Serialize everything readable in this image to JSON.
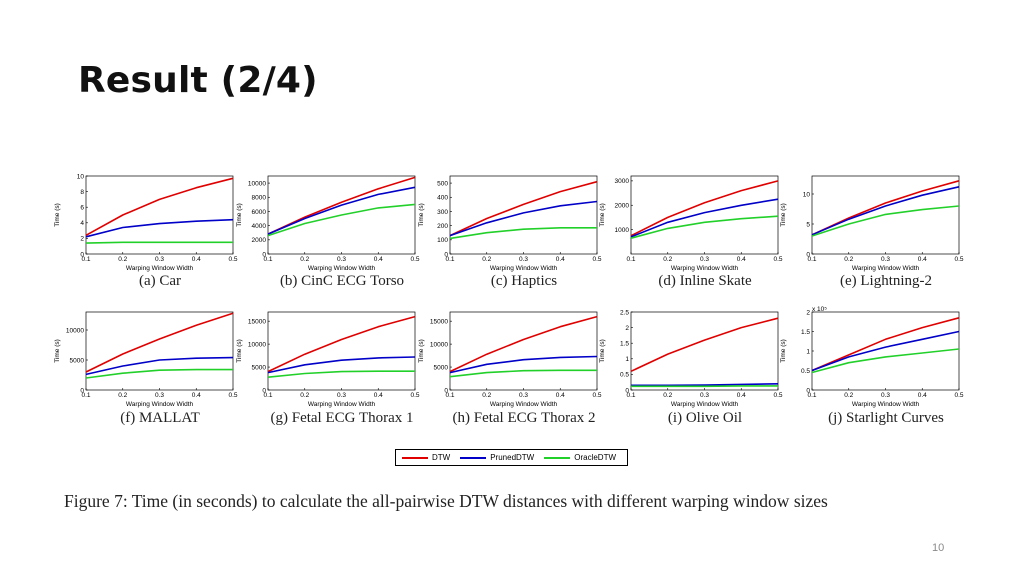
{
  "slide": {
    "title": "Result (2/4)",
    "page_number": "10"
  },
  "figure_caption": "Figure 7: Time (in seconds) to calculate the all-pairwise DTW distances with different warping window sizes",
  "legend": [
    {
      "label": "DTW",
      "color": "#e00000"
    },
    {
      "label": "PrunedDTW",
      "color": "#0000c8"
    },
    {
      "label": "OracleDTW",
      "color": "#22d02a"
    }
  ],
  "chart_data": [
    {
      "type": "line",
      "caption": "(a) Car",
      "x": [
        0.1,
        0.2,
        0.3,
        0.4,
        0.5
      ],
      "xlabel": "Warping Window Width",
      "ylabel": "Time (s)",
      "xlim": [
        0.1,
        0.5
      ],
      "ylim": [
        0,
        10
      ],
      "yticks": [
        "0",
        "2",
        "4",
        "6",
        "8",
        "10"
      ],
      "xticks": [
        "0.1",
        "0.2",
        "0.3",
        "0.4",
        "0.5"
      ],
      "series": [
        {
          "name": "DTW",
          "values": [
            2.4,
            5.0,
            7.0,
            8.5,
            9.7
          ]
        },
        {
          "name": "PrunedDTW",
          "values": [
            2.2,
            3.4,
            3.9,
            4.2,
            4.4
          ]
        },
        {
          "name": "OracleDTW",
          "values": [
            1.4,
            1.5,
            1.5,
            1.5,
            1.5
          ]
        }
      ]
    },
    {
      "type": "line",
      "caption": "(b) CinC ECG Torso",
      "x": [
        0.1,
        0.2,
        0.3,
        0.4,
        0.5
      ],
      "xlabel": "Warping Window Width",
      "ylabel": "Time (s)",
      "xlim": [
        0.1,
        0.5
      ],
      "ylim": [
        0,
        11000
      ],
      "yticks": [
        "0",
        "2000",
        "4000",
        "6000",
        "8000",
        "10000"
      ],
      "xticks": [
        "0.1",
        "0.2",
        "0.3",
        "0.4",
        "0.5"
      ],
      "series": [
        {
          "name": "DTW",
          "values": [
            2800,
            5200,
            7300,
            9200,
            10800
          ]
        },
        {
          "name": "PrunedDTW",
          "values": [
            2800,
            5000,
            6900,
            8400,
            9400
          ]
        },
        {
          "name": "OracleDTW",
          "values": [
            2600,
            4300,
            5500,
            6500,
            7000
          ]
        }
      ]
    },
    {
      "type": "line",
      "caption": "(c) Haptics",
      "x": [
        0.1,
        0.2,
        0.3,
        0.4,
        0.5
      ],
      "xlabel": "Warping Window Width",
      "ylabel": "Time (s)",
      "xlim": [
        0.1,
        0.5
      ],
      "ylim": [
        0,
        550
      ],
      "yticks": [
        "0",
        "100",
        "200",
        "300",
        "400",
        "500"
      ],
      "xticks": [
        "0.1",
        "0.2",
        "0.3",
        "0.4",
        "0.5"
      ],
      "series": [
        {
          "name": "DTW",
          "values": [
            130,
            250,
            350,
            440,
            510
          ]
        },
        {
          "name": "PrunedDTW",
          "values": [
            130,
            220,
            290,
            340,
            370
          ]
        },
        {
          "name": "OracleDTW",
          "values": [
            110,
            150,
            175,
            185,
            185
          ]
        }
      ]
    },
    {
      "type": "line",
      "caption": "(d) Inline Skate",
      "x": [
        0.1,
        0.2,
        0.3,
        0.4,
        0.5
      ],
      "xlabel": "Warping Window Width",
      "ylabel": "Time (s)",
      "xlim": [
        0.1,
        0.5
      ],
      "ylim": [
        0,
        3200
      ],
      "yticks": [
        "1000",
        "2000",
        "3000"
      ],
      "xticks": [
        "0.1",
        "0.2",
        "0.3",
        "0.4",
        "0.5"
      ],
      "series": [
        {
          "name": "DTW",
          "values": [
            750,
            1500,
            2100,
            2600,
            3000
          ]
        },
        {
          "name": "PrunedDTW",
          "values": [
            700,
            1300,
            1700,
            2000,
            2250
          ]
        },
        {
          "name": "OracleDTW",
          "values": [
            650,
            1050,
            1300,
            1450,
            1550
          ]
        }
      ]
    },
    {
      "type": "line",
      "caption": "(e) Lightning-2",
      "x": [
        0.1,
        0.2,
        0.3,
        0.4,
        0.5
      ],
      "xlabel": "Warping Window Width",
      "ylabel": "Time (s)",
      "xlim": [
        0.1,
        0.5
      ],
      "ylim": [
        0,
        13
      ],
      "yticks": [
        "0",
        "5",
        "10"
      ],
      "xticks": [
        "0.1",
        "0.2",
        "0.3",
        "0.4",
        "0.5"
      ],
      "series": [
        {
          "name": "DTW",
          "values": [
            3.2,
            6.0,
            8.5,
            10.5,
            12.2
          ]
        },
        {
          "name": "PrunedDTW",
          "values": [
            3.2,
            5.8,
            8.0,
            9.8,
            11.2
          ]
        },
        {
          "name": "OracleDTW",
          "values": [
            3.0,
            5.0,
            6.6,
            7.4,
            8.0
          ]
        }
      ]
    },
    {
      "type": "line",
      "caption": "(f) MALLAT",
      "x": [
        0.1,
        0.2,
        0.3,
        0.4,
        0.5
      ],
      "xlabel": "Warping Window Width",
      "ylabel": "Time (s)",
      "xlim": [
        0.1,
        0.5
      ],
      "ylim": [
        0,
        13000
      ],
      "yticks": [
        "0",
        "5000",
        "10000"
      ],
      "xticks": [
        "0.1",
        "0.2",
        "0.3",
        "0.4",
        "0.5"
      ],
      "series": [
        {
          "name": "DTW",
          "values": [
            3000,
            6000,
            8500,
            10800,
            12800
          ]
        },
        {
          "name": "PrunedDTW",
          "values": [
            2600,
            4000,
            5000,
            5300,
            5400
          ]
        },
        {
          "name": "OracleDTW",
          "values": [
            2000,
            2800,
            3300,
            3400,
            3400
          ]
        }
      ]
    },
    {
      "type": "line",
      "caption": "(g) Fetal ECG Thorax 1",
      "x": [
        0.1,
        0.2,
        0.3,
        0.4,
        0.5
      ],
      "xlabel": "Warping Window Width",
      "ylabel": "Time (s)",
      "xlim": [
        0.1,
        0.5
      ],
      "ylim": [
        0,
        17000
      ],
      "yticks": [
        "0",
        "5000",
        "10000",
        "15000"
      ],
      "xticks": [
        "0.1",
        "0.2",
        "0.3",
        "0.4",
        "0.5"
      ],
      "series": [
        {
          "name": "DTW",
          "values": [
            4000,
            7800,
            11000,
            13800,
            16000
          ]
        },
        {
          "name": "PrunedDTW",
          "values": [
            3800,
            5500,
            6500,
            7000,
            7200
          ]
        },
        {
          "name": "OracleDTW",
          "values": [
            2800,
            3600,
            4000,
            4100,
            4100
          ]
        }
      ]
    },
    {
      "type": "line",
      "caption": "(h) Fetal ECG Thorax 2",
      "x": [
        0.1,
        0.2,
        0.3,
        0.4,
        0.5
      ],
      "xlabel": "Warping Window Width",
      "ylabel": "Time (s)",
      "xlim": [
        0.1,
        0.5
      ],
      "ylim": [
        0,
        17000
      ],
      "yticks": [
        "0",
        "5000",
        "10000",
        "15000"
      ],
      "xticks": [
        "0.1",
        "0.2",
        "0.3",
        "0.4",
        "0.5"
      ],
      "series": [
        {
          "name": "DTW",
          "values": [
            4000,
            7800,
            11000,
            13800,
            16000
          ]
        },
        {
          "name": "PrunedDTW",
          "values": [
            3800,
            5600,
            6600,
            7100,
            7300
          ]
        },
        {
          "name": "OracleDTW",
          "values": [
            2900,
            3800,
            4200,
            4300,
            4300
          ]
        }
      ]
    },
    {
      "type": "line",
      "caption": "(i) Olive Oil",
      "x": [
        0.1,
        0.2,
        0.3,
        0.4,
        0.5
      ],
      "xlabel": "Warping Window Width",
      "ylabel": "Time (s)",
      "xlim": [
        0.1,
        0.5
      ],
      "ylim": [
        0,
        2.5
      ],
      "yticks": [
        "0",
        "0.5",
        "1",
        "1.5",
        "2",
        "2.5"
      ],
      "xticks": [
        "0.1",
        "0.2",
        "0.3",
        "0.4",
        "0.5"
      ],
      "series": [
        {
          "name": "DTW",
          "values": [
            0.6,
            1.15,
            1.6,
            2.0,
            2.3
          ]
        },
        {
          "name": "PrunedDTW",
          "values": [
            0.15,
            0.15,
            0.16,
            0.18,
            0.2
          ]
        },
        {
          "name": "OracleDTW",
          "values": [
            0.12,
            0.12,
            0.12,
            0.13,
            0.13
          ]
        }
      ]
    },
    {
      "type": "line",
      "caption": "(j) Starlight Curves",
      "x": [
        0.1,
        0.2,
        0.3,
        0.4,
        0.5
      ],
      "xlabel": "Warping Window Width",
      "ylabel": "Time (s)",
      "xlim": [
        0.1,
        0.5
      ],
      "ylim": [
        0,
        2
      ],
      "yticks": [
        "0",
        "0.5",
        "1",
        "1.5",
        "2"
      ],
      "ymultiplier": "x 10⁵",
      "xticks": [
        "0.1",
        "0.2",
        "0.3",
        "0.4",
        "0.5"
      ],
      "series": [
        {
          "name": "DTW",
          "values": [
            0.5,
            0.9,
            1.3,
            1.6,
            1.85
          ]
        },
        {
          "name": "PrunedDTW",
          "values": [
            0.5,
            0.85,
            1.1,
            1.3,
            1.5
          ]
        },
        {
          "name": "OracleDTW",
          "values": [
            0.45,
            0.7,
            0.85,
            0.95,
            1.05
          ]
        }
      ]
    }
  ]
}
